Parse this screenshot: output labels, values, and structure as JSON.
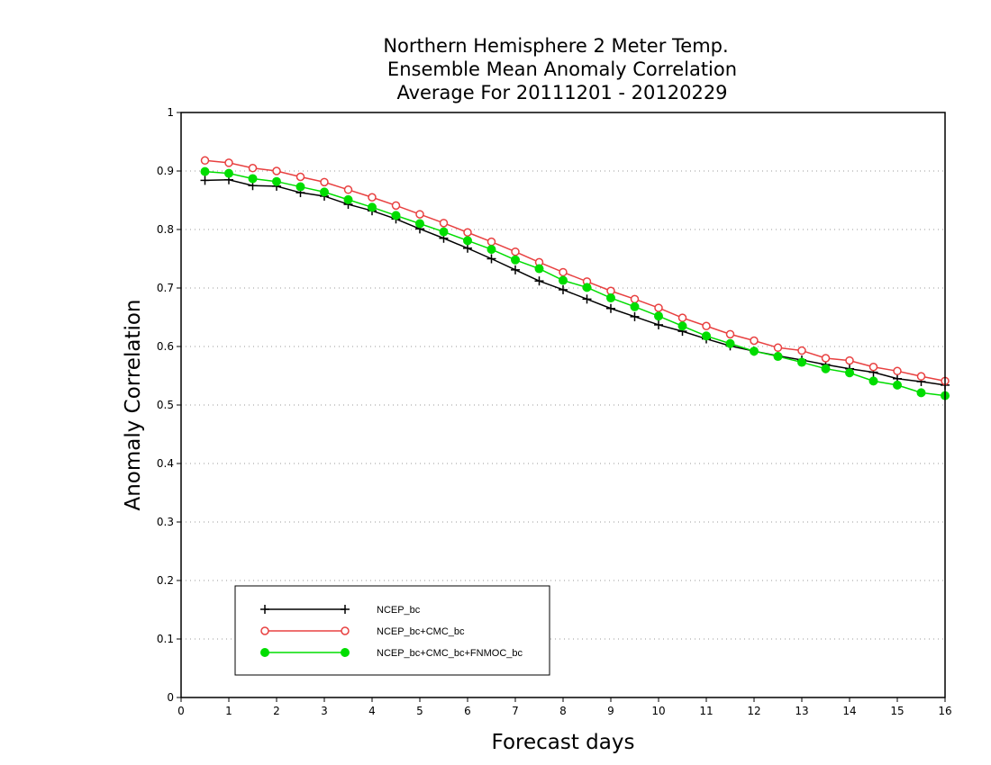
{
  "chart_data": {
    "type": "line",
    "title_lines": [
      "Northern Hemisphere 2 Meter Temp.",
      "Ensemble Mean Anomaly Correlation",
      "Average For 20111201 - 20120229"
    ],
    "xlabel": "Forecast days",
    "ylabel": "Anomaly Correlation",
    "xlim": [
      0,
      16
    ],
    "ylim": [
      0,
      1
    ],
    "x_ticks": [
      "0",
      "1",
      "2",
      "3",
      "4",
      "5",
      "6",
      "7",
      "8",
      "9",
      "10",
      "11",
      "12",
      "13",
      "14",
      "15",
      "16"
    ],
    "y_ticks": [
      "0",
      "0.1",
      "0.2",
      "0.3",
      "0.4",
      "0.5",
      "0.6",
      "0.7",
      "0.8",
      "0.9",
      "1"
    ],
    "grid": "horizontal dotted",
    "legend_position": "bottom-left",
    "x": [
      0.5,
      1,
      1.5,
      2,
      2.5,
      3,
      3.5,
      4,
      4.5,
      5,
      5.5,
      6,
      6.5,
      7,
      7.5,
      8,
      8.5,
      9,
      9.5,
      10,
      10.5,
      11,
      11.5,
      12,
      12.5,
      13,
      13.5,
      14,
      14.5,
      15,
      15.5,
      16
    ],
    "series": [
      {
        "name": "NCEP_bc",
        "color": "#000000",
        "marker": "plus",
        "values": [
          0.884,
          0.885,
          0.875,
          0.874,
          0.863,
          0.857,
          0.843,
          0.832,
          0.818,
          0.801,
          0.785,
          0.768,
          0.75,
          0.731,
          0.712,
          0.697,
          0.681,
          0.665,
          0.651,
          0.637,
          0.626,
          0.613,
          0.601,
          0.592,
          0.584,
          0.577,
          0.569,
          0.562,
          0.556,
          0.545,
          0.54,
          0.534
        ]
      },
      {
        "name": "NCEP_bc+CMC_bc",
        "color": "#e84040",
        "marker": "open-circle",
        "values": [
          0.918,
          0.914,
          0.905,
          0.9,
          0.89,
          0.881,
          0.868,
          0.855,
          0.841,
          0.826,
          0.811,
          0.795,
          0.779,
          0.762,
          0.744,
          0.727,
          0.711,
          0.695,
          0.681,
          0.666,
          0.649,
          0.635,
          0.621,
          0.61,
          0.598,
          0.593,
          0.58,
          0.576,
          0.565,
          0.558,
          0.549,
          0.541
        ]
      },
      {
        "name": "NCEP_bc+CMC_bc+FNMOC_bc",
        "color": "#00dd00",
        "marker": "filled-circle",
        "values": [
          0.899,
          0.896,
          0.887,
          0.882,
          0.873,
          0.864,
          0.851,
          0.838,
          0.824,
          0.81,
          0.796,
          0.781,
          0.766,
          0.748,
          0.733,
          0.713,
          0.701,
          0.683,
          0.668,
          0.652,
          0.635,
          0.618,
          0.605,
          0.592,
          0.583,
          0.573,
          0.562,
          0.555,
          0.541,
          0.534,
          0.521,
          0.516
        ]
      }
    ]
  }
}
